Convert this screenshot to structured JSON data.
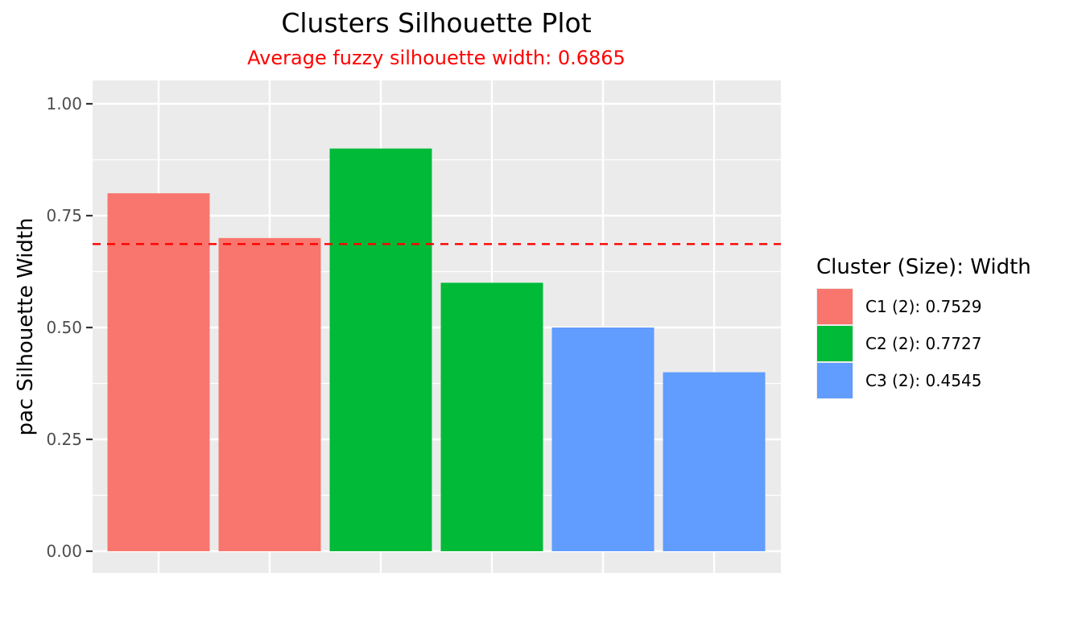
{
  "chart_data": {
    "type": "bar",
    "title": "Clusters Silhouette Plot",
    "subtitle": "Average fuzzy silhouette width: 0.6865",
    "subtitle_color": "#ff0000",
    "xlabel": "",
    "ylabel": "pac Silhouette Width",
    "ylim": [
      0,
      1.05
    ],
    "yticks": [
      "0.00",
      "0.25",
      "0.50",
      "0.75",
      "1.00"
    ],
    "grid": true,
    "panel_background": "#ebebeb",
    "reference_line": {
      "value": 0.6865,
      "style": "dashed",
      "color": "#ff0000"
    },
    "bars": [
      {
        "value": 0.8,
        "cluster": "C1"
      },
      {
        "value": 0.7,
        "cluster": "C1"
      },
      {
        "value": 0.9,
        "cluster": "C2"
      },
      {
        "value": 0.6,
        "cluster": "C2"
      },
      {
        "value": 0.5,
        "cluster": "C3"
      },
      {
        "value": 0.4,
        "cluster": "C3"
      }
    ],
    "legend": {
      "title": "Cluster (Size): Width",
      "position": "right",
      "entries": [
        {
          "cluster": "C1",
          "label": "C1 (2): 0.7529",
          "color": "#f8766d"
        },
        {
          "cluster": "C2",
          "label": "C2 (2): 0.7727",
          "color": "#00ba38"
        },
        {
          "cluster": "C3",
          "label": "C3 (2): 0.4545",
          "color": "#619cff"
        }
      ]
    }
  }
}
